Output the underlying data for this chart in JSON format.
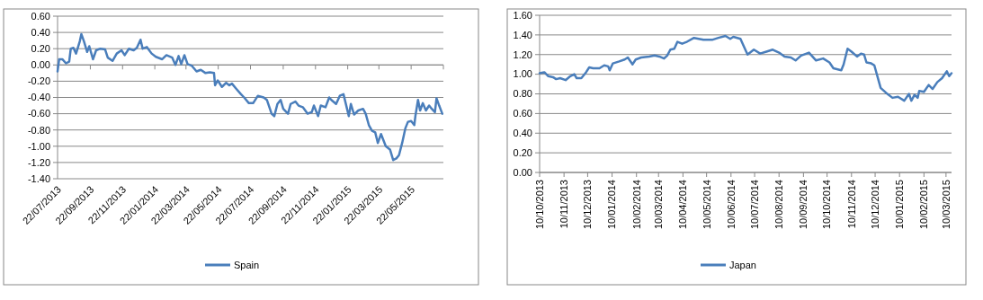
{
  "chart_data": [
    {
      "type": "line",
      "xlim": [
        "2013-07-22",
        "2015-07-22"
      ],
      "xticks": [
        {
          "value": "2013-07-22",
          "label": "22/07/2013"
        },
        {
          "value": "2013-09-22",
          "label": "22/09/2013"
        },
        {
          "value": "2013-11-22",
          "label": "22/11/2013"
        },
        {
          "value": "2014-01-22",
          "label": "22/01/2014"
        },
        {
          "value": "2014-03-22",
          "label": "22/03/2014"
        },
        {
          "value": "2014-05-22",
          "label": "22/05/2014"
        },
        {
          "value": "2014-07-22",
          "label": "22/07/2014"
        },
        {
          "value": "2014-09-22",
          "label": "22/09/2014"
        },
        {
          "value": "2014-11-22",
          "label": "22/11/2014"
        },
        {
          "value": "2015-01-22",
          "label": "22/01/2015"
        },
        {
          "value": "2015-03-22",
          "label": "22/03/2015"
        },
        {
          "value": "2015-05-22",
          "label": "22/05/2015"
        },
        {
          "value": "2015-07-22",
          "label": null
        }
      ],
      "ylim": [
        -1.4,
        0.6
      ],
      "yticks": [
        {
          "value": -1.4,
          "label": "-1.40"
        },
        {
          "value": -1.2,
          "label": "-1.20"
        },
        {
          "value": -1.0,
          "label": "-1.00"
        },
        {
          "value": -0.8,
          "label": "-0.80"
        },
        {
          "value": -0.6,
          "label": "-0.60"
        },
        {
          "value": -0.4,
          "label": "-0.40"
        },
        {
          "value": -0.2,
          "label": "-0.20"
        },
        {
          "value": 0,
          "label": "0.00"
        },
        {
          "value": 0.2,
          "label": "0.20"
        },
        {
          "value": 0.4,
          "label": "0.40"
        },
        {
          "value": 0.6,
          "label": "0.60"
        }
      ],
      "grid": "y",
      "legend": "bottom",
      "line_style": "solid",
      "series": [
        {
          "name": "Spain",
          "color": "#4a7ebb",
          "x": [
            "2013-07-22",
            "2013-07-25",
            "2013-07-31",
            "2013-08-07",
            "2013-08-13",
            "2013-08-16",
            "2013-08-21",
            "2013-08-26",
            "2013-09-02",
            "2013-09-05",
            "2013-09-10",
            "2013-09-16",
            "2013-09-20",
            "2013-09-27",
            "2013-10-03",
            "2013-10-11",
            "2013-10-20",
            "2013-10-25",
            "2013-11-03",
            "2013-11-11",
            "2013-11-20",
            "2013-11-26",
            "2013-12-04",
            "2013-12-13",
            "2013-12-19",
            "2013-12-26",
            "2013-12-30",
            "2014-01-07",
            "2014-01-16",
            "2014-01-24",
            "2014-02-05",
            "2014-02-13",
            "2014-02-24",
            "2014-03-02",
            "2014-03-08",
            "2014-03-13",
            "2014-03-19",
            "2014-03-25",
            "2014-04-02",
            "2014-04-11",
            "2014-04-19",
            "2014-04-28",
            "2014-05-06",
            "2014-05-14",
            "2014-05-16",
            "2014-05-21",
            "2014-05-29",
            "2014-06-06",
            "2014-06-12",
            "2014-06-17",
            "2014-06-26",
            "2014-07-04",
            "2014-07-10",
            "2014-07-19",
            "2014-07-27",
            "2014-08-05",
            "2014-08-16",
            "2014-08-22",
            "2014-08-31",
            "2014-09-05",
            "2014-09-11",
            "2014-09-17",
            "2014-09-22",
            "2014-10-01",
            "2014-10-06",
            "2014-10-15",
            "2014-10-21",
            "2014-10-29",
            "2014-11-07",
            "2014-11-15",
            "2014-11-19",
            "2014-11-27",
            "2014-12-02",
            "2014-12-11",
            "2014-12-18",
            "2014-12-22",
            "2014-12-31",
            "2015-01-07",
            "2015-01-14",
            "2015-01-20",
            "2015-01-24",
            "2015-01-28",
            "2015-02-03",
            "2015-02-11",
            "2015-02-20",
            "2015-02-25",
            "2015-03-03",
            "2015-03-09",
            "2015-03-15",
            "2015-03-20",
            "2015-03-26",
            "2015-04-04",
            "2015-04-12",
            "2015-04-18",
            "2015-04-24",
            "2015-04-29",
            "2015-05-05",
            "2015-05-11",
            "2015-05-16",
            "2015-05-22",
            "2015-05-28",
            "2015-05-30",
            "2015-06-04",
            "2015-06-08",
            "2015-06-13",
            "2015-06-19",
            "2015-06-25",
            "2015-06-30",
            "2015-07-06",
            "2015-07-09",
            "2015-07-14",
            "2015-07-20"
          ],
          "values": [
            -0.08,
            0.07,
            0.07,
            0.02,
            0.04,
            0.2,
            0.21,
            0.14,
            0.29,
            0.38,
            0.29,
            0.16,
            0.23,
            0.07,
            0.18,
            0.2,
            0.19,
            0.09,
            0.05,
            0.14,
            0.18,
            0.12,
            0.2,
            0.18,
            0.21,
            0.31,
            0.2,
            0.22,
            0.14,
            0.1,
            0.07,
            0.12,
            0.09,
            0.0,
            0.11,
            0.01,
            0.12,
            0.01,
            -0.01,
            -0.08,
            -0.06,
            -0.1,
            -0.09,
            -0.1,
            -0.25,
            -0.19,
            -0.27,
            -0.22,
            -0.25,
            -0.23,
            -0.3,
            -0.36,
            -0.4,
            -0.47,
            -0.47,
            -0.38,
            -0.4,
            -0.43,
            -0.6,
            -0.63,
            -0.48,
            -0.43,
            -0.54,
            -0.6,
            -0.48,
            -0.45,
            -0.5,
            -0.52,
            -0.6,
            -0.58,
            -0.5,
            -0.63,
            -0.5,
            -0.52,
            -0.4,
            -0.43,
            -0.48,
            -0.38,
            -0.36,
            -0.52,
            -0.63,
            -0.48,
            -0.61,
            -0.56,
            -0.54,
            -0.6,
            -0.74,
            -0.81,
            -0.83,
            -0.96,
            -0.85,
            -1.0,
            -1.04,
            -1.17,
            -1.15,
            -1.11,
            -0.96,
            -0.78,
            -0.7,
            -0.69,
            -0.74,
            -0.63,
            -0.43,
            -0.56,
            -0.47,
            -0.56,
            -0.5,
            -0.54,
            -0.58,
            -0.41,
            -0.5,
            -0.6
          ]
        }
      ]
    },
    {
      "type": "line",
      "xlim": [
        "2013-10-10",
        "2015-03-17"
      ],
      "xticks": [
        {
          "value": "2013-10-10",
          "label": "10/10/2013"
        },
        {
          "value": "2013-11-10",
          "label": "10/11/2013"
        },
        {
          "value": "2013-12-10",
          "label": "10/12/2013"
        },
        {
          "value": "2014-01-10",
          "label": "10/01/2014"
        },
        {
          "value": "2014-02-10",
          "label": "10/02/2014"
        },
        {
          "value": "2014-03-10",
          "label": "10/03/2014"
        },
        {
          "value": "2014-04-10",
          "label": "10/04/2014"
        },
        {
          "value": "2014-05-10",
          "label": "10/05/2014"
        },
        {
          "value": "2014-06-10",
          "label": "10/06/2014"
        },
        {
          "value": "2014-07-10",
          "label": "10/07/2014"
        },
        {
          "value": "2014-08-10",
          "label": "10/08/2014"
        },
        {
          "value": "2014-09-10",
          "label": "10/09/2014"
        },
        {
          "value": "2014-10-10",
          "label": "10/10/2014"
        },
        {
          "value": "2014-11-10",
          "label": "10/11/2014"
        },
        {
          "value": "2014-12-10",
          "label": "10/12/2014"
        },
        {
          "value": "2015-01-10",
          "label": "10/01/2015"
        },
        {
          "value": "2015-02-10",
          "label": "10/02/2015"
        },
        {
          "value": "2015-03-10",
          "label": "10/03/2015"
        }
      ],
      "ylim": [
        0,
        1.6
      ],
      "yticks": [
        {
          "value": 0,
          "label": "0.00"
        },
        {
          "value": 0.2,
          "label": "0.20"
        },
        {
          "value": 0.4,
          "label": "0.40"
        },
        {
          "value": 0.6,
          "label": "0.60"
        },
        {
          "value": 0.8,
          "label": "0.80"
        },
        {
          "value": 1.0,
          "label": "1.00"
        },
        {
          "value": 1.2,
          "label": "1.20"
        },
        {
          "value": 1.4,
          "label": "1.40"
        },
        {
          "value": 1.6,
          "label": "1.60"
        }
      ],
      "grid": "y",
      "legend": "bottom",
      "line_style": "solid",
      "series": [
        {
          "name": "Japan",
          "color": "#4a7ebb",
          "x": [
            "2013-10-10",
            "2013-10-16",
            "2013-10-21",
            "2013-10-27",
            "2013-10-31",
            "2013-11-05",
            "2013-11-12",
            "2013-11-18",
            "2013-11-23",
            "2013-11-26",
            "2013-12-02",
            "2013-12-08",
            "2013-12-12",
            "2013-12-17",
            "2013-12-25",
            "2013-12-31",
            "2014-01-05",
            "2014-01-07",
            "2014-01-11",
            "2014-01-19",
            "2014-01-26",
            "2014-01-30",
            "2014-02-05",
            "2014-02-09",
            "2014-02-16",
            "2014-02-26",
            "2014-03-05",
            "2014-03-11",
            "2014-03-17",
            "2014-03-21",
            "2014-03-25",
            "2014-03-30",
            "2014-04-03",
            "2014-04-09",
            "2014-04-15",
            "2014-04-24",
            "2014-05-06",
            "2014-05-17",
            "2014-05-25",
            "2014-06-03",
            "2014-06-09",
            "2014-06-13",
            "2014-06-22",
            "2014-07-01",
            "2014-07-09",
            "2014-07-17",
            "2014-07-25",
            "2014-08-02",
            "2014-08-10",
            "2014-08-17",
            "2014-08-25",
            "2014-08-31",
            "2014-09-07",
            "2014-09-17",
            "2014-09-26",
            "2014-10-05",
            "2014-10-13",
            "2014-10-18",
            "2014-10-28",
            "2014-10-31",
            "2014-11-05",
            "2014-11-10",
            "2014-11-17",
            "2014-11-22",
            "2014-11-26",
            "2014-11-29",
            "2014-12-05",
            "2014-12-09",
            "2014-12-17",
            "2014-12-24",
            "2015-01-01",
            "2015-01-08",
            "2015-01-16",
            "2015-01-22",
            "2015-01-25",
            "2015-01-29",
            "2015-02-02",
            "2015-02-04",
            "2015-02-10",
            "2015-02-16",
            "2015-02-21",
            "2015-02-27",
            "2015-03-05",
            "2015-03-11",
            "2015-03-14",
            "2015-03-17"
          ],
          "values": [
            1.01,
            1.02,
            0.98,
            0.97,
            0.95,
            0.96,
            0.94,
            0.98,
            1.0,
            0.96,
            0.96,
            1.02,
            1.07,
            1.06,
            1.06,
            1.09,
            1.08,
            1.04,
            1.11,
            1.13,
            1.15,
            1.17,
            1.1,
            1.15,
            1.17,
            1.18,
            1.19,
            1.18,
            1.16,
            1.19,
            1.25,
            1.26,
            1.33,
            1.31,
            1.33,
            1.37,
            1.35,
            1.35,
            1.37,
            1.39,
            1.36,
            1.38,
            1.36,
            1.2,
            1.25,
            1.21,
            1.23,
            1.25,
            1.22,
            1.18,
            1.17,
            1.14,
            1.19,
            1.22,
            1.14,
            1.16,
            1.12,
            1.06,
            1.04,
            1.1,
            1.26,
            1.23,
            1.18,
            1.21,
            1.2,
            1.12,
            1.11,
            1.09,
            0.86,
            0.81,
            0.76,
            0.77,
            0.73,
            0.8,
            0.73,
            0.79,
            0.76,
            0.83,
            0.82,
            0.89,
            0.85,
            0.92,
            0.96,
            1.03,
            0.98,
            1.01
          ]
        }
      ]
    }
  ]
}
